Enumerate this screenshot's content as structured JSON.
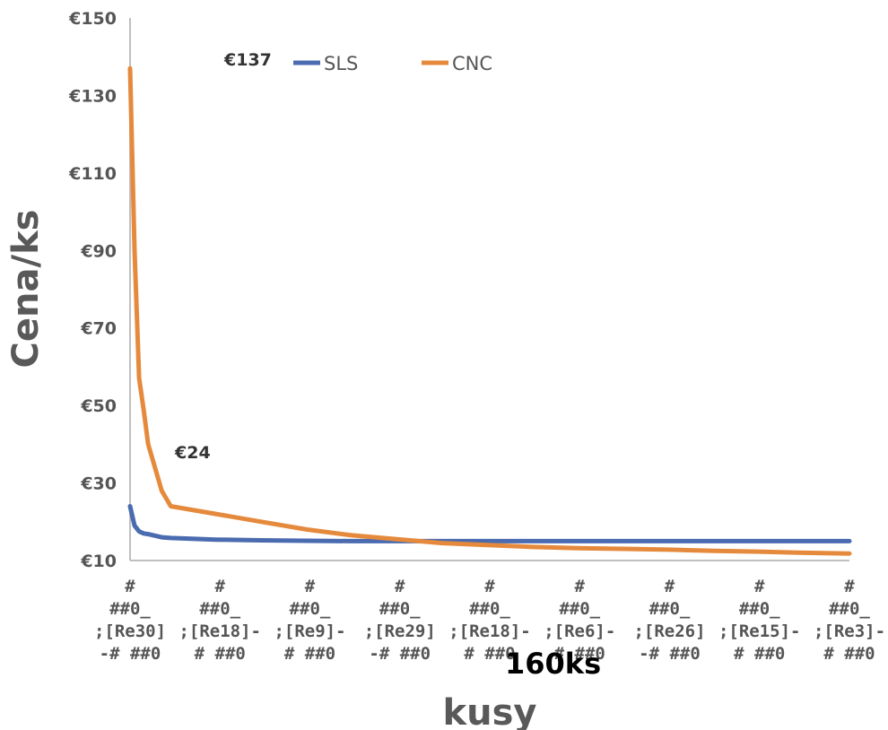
{
  "chart_data": {
    "type": "line",
    "title": "",
    "xlabel": "kusy",
    "ylabel": "Cena/ks",
    "ylim": [
      10,
      150
    ],
    "y_ticks": [
      "€10",
      "€30",
      "€50",
      "€70",
      "€90",
      "€110",
      "€130",
      "€150"
    ],
    "y_tick_values": [
      10,
      30,
      50,
      70,
      90,
      110,
      130,
      150
    ],
    "x_tick_labels": [
      [
        "#",
        "##0_",
        ";[Re30]",
        "-# ##0"
      ],
      [
        "#",
        "##0_",
        ";[Re18]-",
        "# ##0"
      ],
      [
        "#",
        "##0_",
        ";[Re9]-",
        "# ##0"
      ],
      [
        "#",
        "##0_",
        ";[Re29]",
        "-# ##0"
      ],
      [
        "#",
        "##0_",
        ";[Re18]-",
        "# ##0"
      ],
      [
        "#",
        "##0_",
        ";[Re6]-",
        "# ##0"
      ],
      [
        "#",
        "##0_",
        ";[Re26]",
        "-# ##0"
      ],
      [
        "#",
        "##0_",
        ";[Re15]-",
        "# ##0"
      ],
      [
        "#",
        "##0_",
        ";[Re3]-",
        "# ##0"
      ]
    ],
    "x": [
      1,
      2,
      3,
      4,
      5,
      8,
      10,
      20,
      30,
      40,
      50,
      60,
      70,
      80,
      90,
      100,
      110,
      120,
      130,
      140,
      150,
      160
    ],
    "series": [
      {
        "name": "SLS",
        "color": "#4a6bb0",
        "values": [
          24,
          19,
          17.5,
          17,
          16.8,
          16,
          15.8,
          15.4,
          15.2,
          15.1,
          15.0,
          15.0,
          15.0,
          15.0,
          15.0,
          15.0,
          15.0,
          15.0,
          15.0,
          15.0,
          15.0,
          15.0
        ]
      },
      {
        "name": "CNC",
        "color": "#e58a3c",
        "values": [
          137,
          90,
          57,
          49,
          40,
          28,
          24,
          22,
          20,
          18,
          16.5,
          15.5,
          14.5,
          14,
          13.5,
          13.2,
          13,
          12.8,
          12.5,
          12.3,
          12,
          11.8
        ]
      }
    ],
    "legend_position": "top",
    "grid": false,
    "annotations": [
      {
        "text": "€137",
        "series": "CNC",
        "x": 1
      },
      {
        "text": "€24",
        "series": "SLS",
        "x": 1
      },
      {
        "text": "160ks",
        "x": 160
      }
    ]
  }
}
